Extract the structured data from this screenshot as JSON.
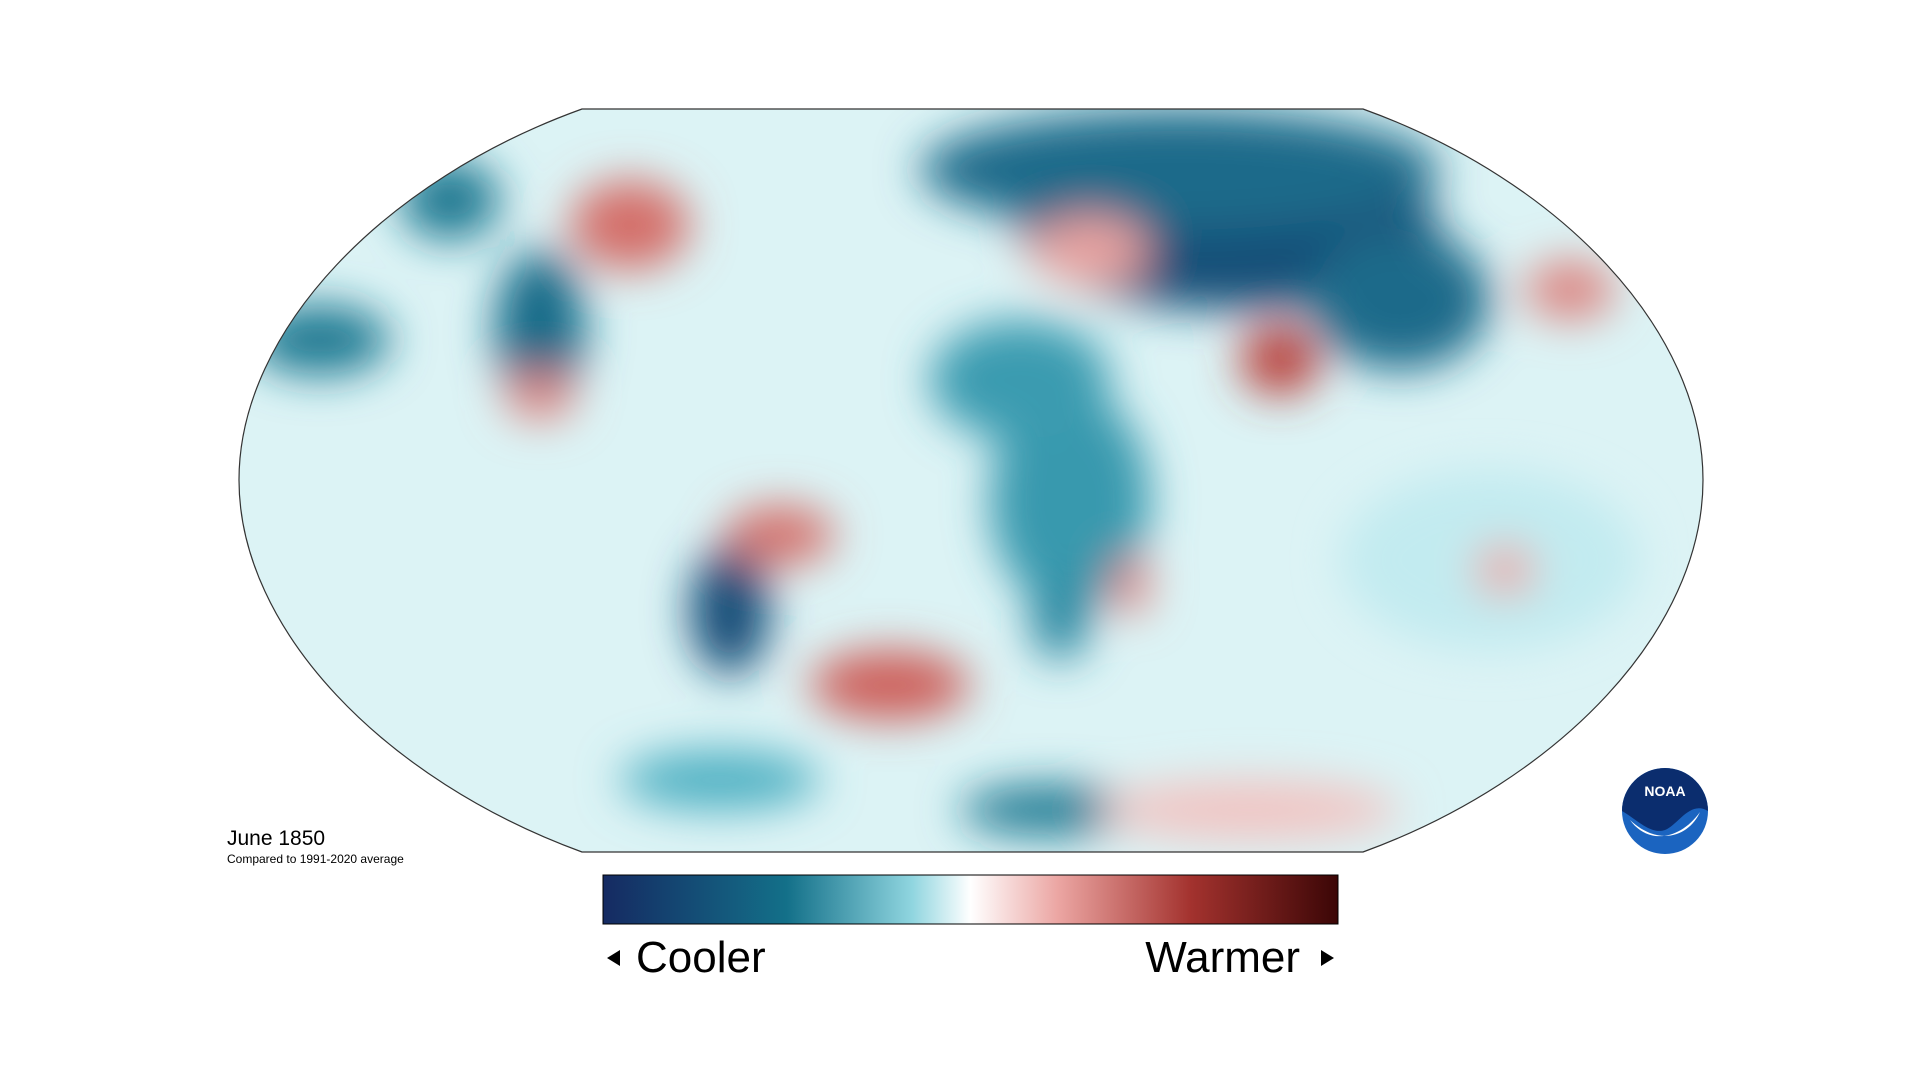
{
  "title": "June 1850",
  "subtitle": "Compared to 1991-2020 average",
  "legend": {
    "low": "Cooler",
    "high": "Warmer"
  },
  "logo": "NOAA"
}
